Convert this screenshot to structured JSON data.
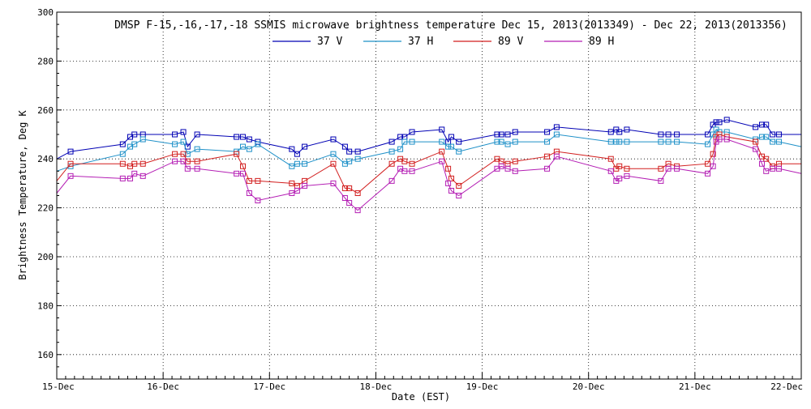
{
  "chart_data": {
    "type": "line",
    "title": "DMSP F-15,-16,-17,-18 SSMIS microwave brightness temperature Dec 15, 2013(2013349) - Dec 22, 2013(2013356)",
    "xlabel": "Date (EST)",
    "ylabel": "Brightness Temperature, Deg K",
    "xlim": [
      0,
      7
    ],
    "ylim": [
      150,
      300
    ],
    "yticks": [
      160,
      180,
      200,
      220,
      240,
      260,
      280,
      300
    ],
    "xtick_values": [
      0,
      1,
      2,
      3,
      4,
      5,
      6,
      7
    ],
    "xtick_labels": [
      "15-Dec",
      "16-Dec",
      "17-Dec",
      "18-Dec",
      "19-Dec",
      "20-Dec",
      "21-Dec",
      "22-Dec"
    ],
    "grid": true,
    "legend_position": "top-center",
    "series": [
      {
        "name": "37 V",
        "color": "#0000b4",
        "x": [
          0.0,
          0.13,
          0.62,
          0.69,
          0.73,
          0.81,
          1.11,
          1.19,
          1.23,
          1.32,
          1.69,
          1.75,
          1.81,
          1.89,
          2.21,
          2.26,
          2.33,
          2.6,
          2.71,
          2.75,
          2.83,
          3.15,
          3.23,
          3.27,
          3.34,
          3.62,
          3.68,
          3.71,
          3.78,
          4.14,
          4.18,
          4.24,
          4.31,
          4.61,
          4.7,
          5.21,
          5.26,
          5.29,
          5.36,
          5.68,
          5.75,
          5.83,
          6.12,
          6.17,
          6.2,
          6.23,
          6.3,
          6.57,
          6.63,
          6.67,
          6.73,
          6.79,
          7.0
        ],
        "values": [
          240,
          243,
          246,
          249,
          250,
          250,
          250,
          251,
          245,
          250,
          249,
          249,
          248,
          247,
          244,
          242,
          245,
          248,
          245,
          243,
          243,
          247,
          249,
          249,
          251,
          252,
          247,
          249,
          247,
          250,
          250,
          250,
          251,
          251,
          253,
          251,
          252,
          251,
          252,
          250,
          250,
          250,
          250,
          254,
          255,
          255,
          256,
          253,
          254,
          254,
          250,
          250,
          250
        ]
      },
      {
        "name": "37 H",
        "color": "#1e90c8",
        "x": [
          0.0,
          0.13,
          0.62,
          0.69,
          0.73,
          0.81,
          1.11,
          1.19,
          1.23,
          1.32,
          1.69,
          1.75,
          1.81,
          1.89,
          2.21,
          2.26,
          2.33,
          2.6,
          2.71,
          2.75,
          2.83,
          3.15,
          3.23,
          3.27,
          3.34,
          3.62,
          3.68,
          3.71,
          3.78,
          4.14,
          4.18,
          4.24,
          4.31,
          4.61,
          4.7,
          5.21,
          5.26,
          5.29,
          5.36,
          5.68,
          5.75,
          5.83,
          6.12,
          6.17,
          6.2,
          6.23,
          6.3,
          6.57,
          6.63,
          6.67,
          6.73,
          6.79,
          7.0
        ],
        "values": [
          235,
          237,
          242,
          245,
          246,
          248,
          246,
          247,
          242,
          244,
          243,
          245,
          244,
          246,
          237,
          238,
          238,
          242,
          238,
          239,
          240,
          243,
          244,
          247,
          247,
          247,
          245,
          245,
          243,
          247,
          247,
          246,
          247,
          247,
          250,
          247,
          247,
          247,
          247,
          247,
          247,
          247,
          246,
          250,
          252,
          251,
          251,
          248,
          249,
          249,
          247,
          247,
          245
        ]
      },
      {
        "name": "89 V",
        "color": "#d21e1e",
        "x": [
          0.0,
          0.13,
          0.62,
          0.69,
          0.73,
          0.81,
          1.11,
          1.19,
          1.23,
          1.32,
          1.69,
          1.75,
          1.81,
          1.89,
          2.21,
          2.26,
          2.33,
          2.6,
          2.71,
          2.75,
          2.83,
          3.15,
          3.23,
          3.27,
          3.34,
          3.62,
          3.68,
          3.71,
          3.78,
          4.14,
          4.18,
          4.24,
          4.31,
          4.61,
          4.7,
          5.21,
          5.26,
          5.29,
          5.36,
          5.68,
          5.75,
          5.83,
          6.12,
          6.17,
          6.2,
          6.23,
          6.3,
          6.57,
          6.63,
          6.67,
          6.73,
          6.79,
          7.0
        ],
        "values": [
          231,
          238,
          238,
          237,
          238,
          238,
          242,
          242,
          239,
          239,
          242,
          237,
          231,
          231,
          230,
          229,
          231,
          238,
          228,
          228,
          226,
          238,
          240,
          239,
          238,
          243,
          236,
          232,
          229,
          240,
          239,
          238,
          239,
          241,
          243,
          240,
          236,
          237,
          236,
          236,
          238,
          237,
          238,
          242,
          249,
          250,
          249,
          247,
          241,
          240,
          237,
          238,
          238
        ]
      },
      {
        "name": "89 H",
        "color": "#b41eb4",
        "x": [
          0.0,
          0.13,
          0.62,
          0.69,
          0.73,
          0.81,
          1.11,
          1.19,
          1.23,
          1.32,
          1.69,
          1.75,
          1.81,
          1.89,
          2.21,
          2.26,
          2.33,
          2.6,
          2.71,
          2.75,
          2.83,
          3.15,
          3.23,
          3.27,
          3.34,
          3.62,
          3.68,
          3.71,
          3.78,
          4.14,
          4.18,
          4.24,
          4.31,
          4.61,
          4.7,
          5.21,
          5.26,
          5.29,
          5.36,
          5.68,
          5.75,
          5.83,
          6.12,
          6.17,
          6.2,
          6.23,
          6.3,
          6.57,
          6.63,
          6.67,
          6.73,
          6.79,
          7.0
        ],
        "values": [
          226,
          233,
          232,
          232,
          234,
          233,
          239,
          239,
          236,
          236,
          234,
          234,
          226,
          223,
          226,
          227,
          229,
          230,
          224,
          222,
          219,
          231,
          236,
          235,
          235,
          239,
          230,
          227,
          225,
          236,
          237,
          236,
          235,
          236,
          241,
          235,
          231,
          232,
          233,
          231,
          236,
          236,
          234,
          237,
          247,
          248,
          248,
          244,
          238,
          235,
          236,
          236,
          234
        ]
      }
    ]
  }
}
